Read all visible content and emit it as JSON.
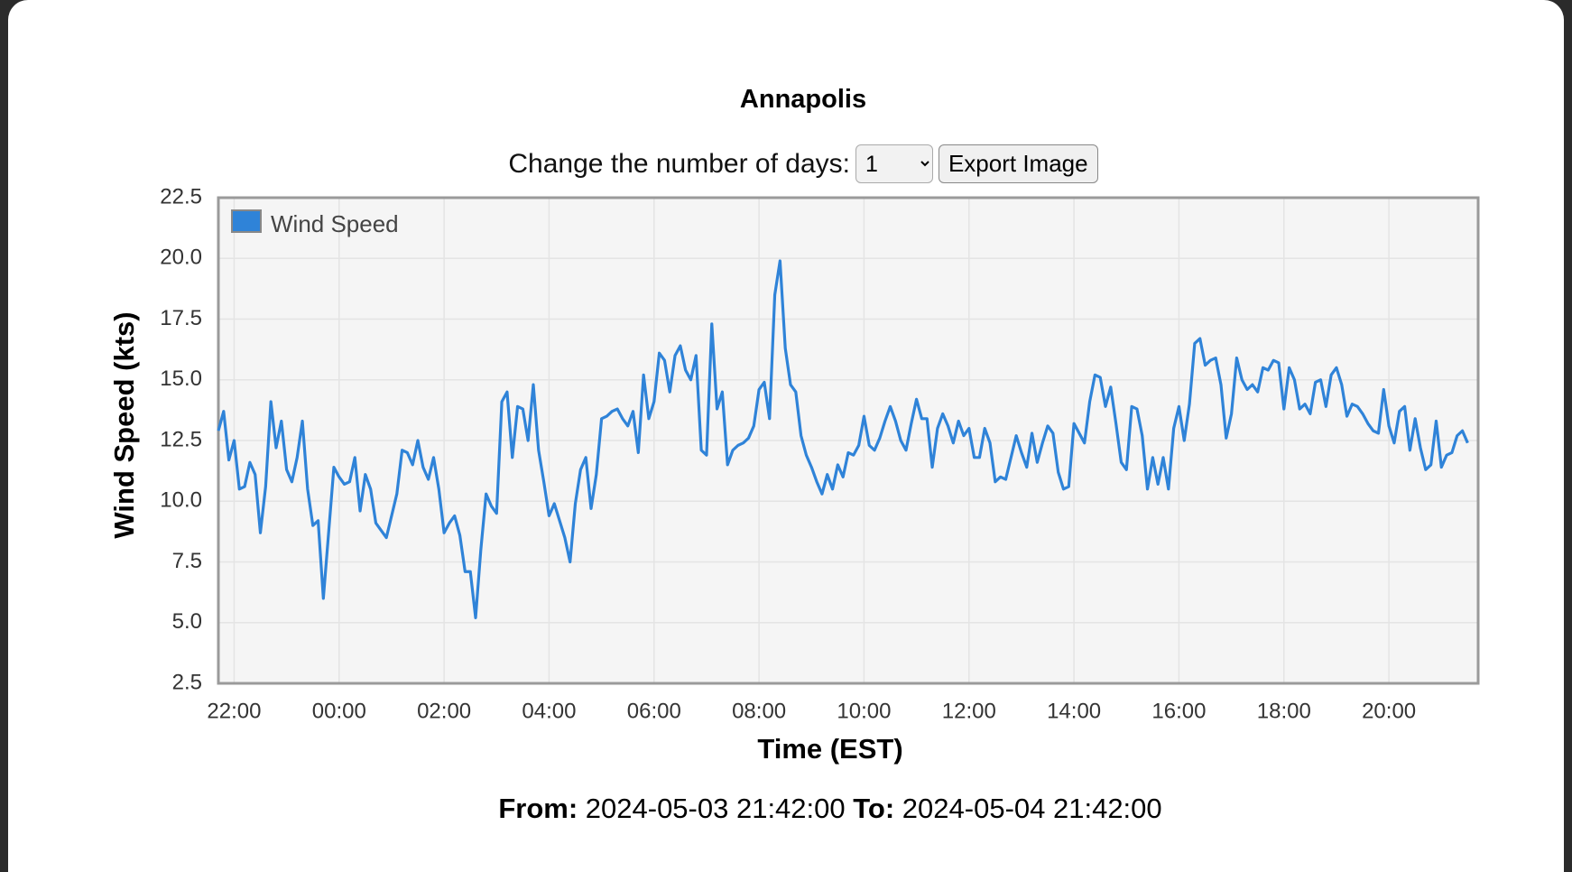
{
  "chart_data": {
    "type": "line",
    "title": "Annapolis",
    "x_label": "Time (EST)",
    "y_label": "Wind Speed (kts)",
    "xlim": [
      21.7,
      45.7
    ],
    "ylim": [
      2.5,
      22.5
    ],
    "xticks": [
      {
        "value": 22,
        "label": "22:00"
      },
      {
        "value": 24,
        "label": "00:00"
      },
      {
        "value": 26,
        "label": "02:00"
      },
      {
        "value": 28,
        "label": "04:00"
      },
      {
        "value": 30,
        "label": "06:00"
      },
      {
        "value": 32,
        "label": "08:00"
      },
      {
        "value": 34,
        "label": "10:00"
      },
      {
        "value": 36,
        "label": "12:00"
      },
      {
        "value": 38,
        "label": "14:00"
      },
      {
        "value": 40,
        "label": "16:00"
      },
      {
        "value": 42,
        "label": "18:00"
      },
      {
        "value": 44,
        "label": "20:00"
      }
    ],
    "yticks": [
      2.5,
      {
        "value": 5,
        "label": "5.0"
      },
      7.5,
      {
        "value": 10,
        "label": "10.0"
      },
      12.5,
      {
        "value": 15,
        "label": "15.0"
      },
      17.5,
      {
        "value": 20,
        "label": "20.0"
      },
      22.5
    ],
    "grid": true,
    "legend": "top-left",
    "x": [
      21.7,
      21.8,
      21.9,
      22.0,
      22.1,
      22.2,
      22.3,
      22.4,
      22.5,
      22.6,
      22.7,
      22.8,
      22.9,
      23.0,
      23.1,
      23.2,
      23.3,
      23.4,
      23.5,
      23.6,
      23.7,
      23.8,
      23.9,
      24.0,
      24.1,
      24.2,
      24.3,
      24.4,
      24.5,
      24.6,
      24.7,
      24.8,
      24.9,
      25.0,
      25.1,
      25.2,
      25.3,
      25.4,
      25.5,
      25.6,
      25.7,
      25.8,
      25.9,
      26.0,
      26.1,
      26.2,
      26.3,
      26.4,
      26.5,
      26.6,
      26.7,
      26.8,
      26.9,
      27.0,
      27.1,
      27.2,
      27.3,
      27.4,
      27.5,
      27.6,
      27.7,
      27.8,
      27.9,
      28.0,
      28.1,
      28.2,
      28.3,
      28.4,
      28.5,
      28.6,
      28.7,
      28.8,
      28.9,
      29.0,
      29.1,
      29.2,
      29.3,
      29.4,
      29.5,
      29.6,
      29.7,
      29.8,
      29.9,
      30.0,
      30.1,
      30.2,
      30.3,
      30.4,
      30.5,
      30.6,
      30.7,
      30.8,
      30.9,
      31.0,
      31.1,
      31.2,
      31.3,
      31.4,
      31.5,
      31.6,
      31.7,
      31.8,
      31.9,
      32.0,
      32.1,
      32.2,
      32.3,
      32.4,
      32.5,
      32.6,
      32.7,
      32.8,
      32.9,
      33.0,
      33.1,
      33.2,
      33.3,
      33.4,
      33.5,
      33.6,
      33.7,
      33.8,
      33.9,
      34.0,
      34.1,
      34.2,
      34.3,
      34.4,
      34.5,
      34.6,
      34.7,
      34.8,
      34.9,
      35.0,
      35.1,
      35.2,
      35.3,
      35.4,
      35.5,
      35.6,
      35.7,
      35.8,
      35.9,
      36.0,
      36.1,
      36.2,
      36.3,
      36.4,
      36.5,
      36.6,
      36.7,
      36.8,
      36.9,
      37.0,
      37.1,
      37.2,
      37.3,
      37.4,
      37.5,
      37.6,
      37.7,
      37.8,
      37.9,
      38.0,
      38.1,
      38.2,
      38.3,
      38.4,
      38.5,
      38.6,
      38.7,
      38.8,
      38.9,
      39.0,
      39.1,
      39.2,
      39.3,
      39.4,
      39.5,
      39.6,
      39.7,
      39.8,
      39.9,
      40.0,
      40.1,
      40.2,
      40.3,
      40.4,
      40.5,
      40.6,
      40.7,
      40.8,
      40.9,
      41.0,
      41.1,
      41.2,
      41.3,
      41.4,
      41.5,
      41.6,
      41.7,
      41.8,
      41.9,
      42.0,
      42.1,
      42.2,
      42.3,
      42.4,
      42.5,
      42.6,
      42.7,
      42.8,
      42.9,
      43.0,
      43.1,
      43.2,
      43.3,
      43.4,
      43.5,
      43.6,
      43.7,
      43.8,
      43.9,
      44.0,
      44.1,
      44.2,
      44.3,
      44.4,
      44.5,
      44.6,
      44.7,
      44.8,
      44.9,
      45.0,
      45.1,
      45.2,
      45.3,
      45.4,
      45.5
    ],
    "series": [
      {
        "name": "Wind Speed",
        "color": "#2f83d8",
        "values": [
          12.9,
          13.7,
          11.7,
          12.5,
          10.5,
          10.6,
          11.6,
          11.1,
          8.7,
          10.6,
          14.1,
          12.2,
          13.3,
          11.3,
          10.8,
          11.8,
          13.3,
          10.5,
          9.0,
          9.2,
          6.0,
          8.7,
          11.4,
          11.0,
          10.7,
          10.8,
          11.8,
          9.6,
          11.1,
          10.5,
          9.1,
          8.8,
          8.5,
          9.4,
          10.3,
          12.1,
          12.0,
          11.5,
          12.5,
          11.4,
          10.9,
          11.8,
          10.5,
          8.7,
          9.1,
          9.4,
          8.6,
          7.1,
          7.1,
          5.2,
          8.0,
          10.3,
          9.8,
          9.5,
          14.1,
          14.5,
          11.8,
          13.9,
          13.8,
          12.5,
          14.8,
          12.1,
          10.8,
          9.4,
          9.9,
          9.2,
          8.5,
          7.5,
          9.9,
          11.3,
          11.8,
          9.7,
          11.1,
          13.4,
          13.5,
          13.7,
          13.8,
          13.4,
          13.1,
          13.7,
          12.0,
          15.2,
          13.4,
          14.1,
          16.1,
          15.8,
          14.5,
          16.0,
          16.4,
          15.4,
          15.0,
          16.0,
          12.1,
          11.9,
          17.3,
          13.8,
          14.5,
          11.5,
          12.1,
          12.3,
          12.4,
          12.6,
          13.1,
          14.6,
          14.9,
          13.4,
          18.5,
          19.9,
          16.3,
          14.8,
          14.5,
          12.7,
          11.9,
          11.4,
          10.8,
          10.3,
          11.1,
          10.5,
          11.5,
          11.0,
          12.0,
          11.9,
          12.3,
          13.5,
          12.3,
          12.1,
          12.6,
          13.3,
          13.9,
          13.3,
          12.5,
          12.1,
          13.2,
          14.2,
          13.4,
          13.4,
          11.4,
          13.0,
          13.6,
          13.1,
          12.4,
          13.3,
          12.7,
          13.0,
          11.8,
          11.8,
          13.0,
          12.4,
          10.8,
          11.0,
          10.9,
          11.8,
          12.7,
          12.0,
          11.4,
          12.8,
          11.6,
          12.4,
          13.1,
          12.8,
          11.2,
          10.5,
          10.6,
          13.2,
          12.8,
          12.4,
          14.1,
          15.2,
          15.1,
          13.9,
          14.7,
          13.2,
          11.6,
          11.3,
          13.9,
          13.8,
          12.7,
          10.5,
          11.8,
          10.7,
          11.8,
          10.5,
          13.0,
          13.9,
          12.5,
          14.0,
          16.5,
          16.7,
          15.6,
          15.8,
          15.9,
          14.8,
          12.6,
          13.6,
          15.9,
          15.0,
          14.6,
          14.8,
          14.5,
          15.5,
          15.4,
          15.8,
          15.7,
          13.8,
          15.5,
          15.0,
          13.8,
          14.0,
          13.6,
          14.9,
          15.0,
          13.9,
          15.2,
          15.5,
          14.8,
          13.5,
          14.0,
          13.9,
          13.6,
          13.2,
          12.9,
          12.8,
          14.6,
          13.1,
          12.4,
          13.7,
          13.9,
          12.1,
          13.4,
          12.2,
          11.3,
          11.5,
          13.3,
          11.4,
          11.9,
          12.0,
          12.7,
          12.9,
          12.4
        ]
      }
    ]
  },
  "controls": {
    "days_label": "Change the number of days:",
    "days": "1",
    "export_button": "Export Image"
  },
  "range": {
    "from_label": "From:",
    "from": "2024-05-03 21:42:00",
    "to_label": "To:",
    "to": "2024-05-04 21:42:00"
  }
}
